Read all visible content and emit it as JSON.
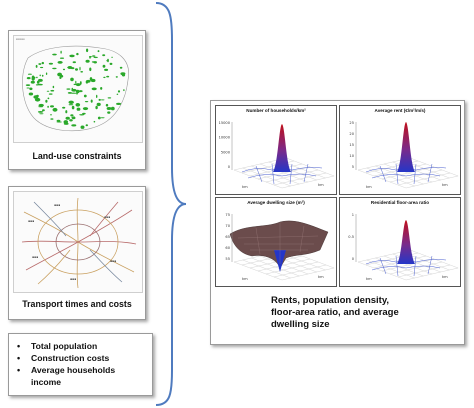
{
  "inputs": {
    "land_use": {
      "caption": "Land-use constraints",
      "icon": "land-use-map"
    },
    "transport": {
      "caption": "Transport times and costs",
      "icon": "transport-network-map"
    },
    "parameters": [
      "Total population",
      "Construction costs",
      "Average households income"
    ]
  },
  "outputs": {
    "subplots": [
      {
        "title": "Number of households/km²",
        "icon": "surface-peak-plot",
        "zticks": [
          "15000",
          "10000",
          "5000",
          "0"
        ]
      },
      {
        "title": "Average rent (€/m²/m/s)",
        "icon": "surface-peak-plot",
        "zticks": [
          "25",
          "20",
          "15",
          "10",
          "5"
        ]
      },
      {
        "title": "Average dwelling size (m²)",
        "icon": "surface-sheet-plot",
        "zticks": [
          "75",
          "70",
          "65",
          "60",
          "55"
        ]
      },
      {
        "title": "Residential floor-area ratio",
        "icon": "surface-peak-plot",
        "zticks": [
          "1",
          "0.5",
          "0"
        ]
      }
    ],
    "axis_label": "km",
    "summary_lines": [
      "Rents, population density,",
      "floor-area ratio, and average",
      "dwelling size"
    ]
  },
  "colors": {
    "brace": "#4f7bbf",
    "green": "#2aa82a",
    "peak_top": "#c0101a",
    "mesh": "#4a5fd0"
  }
}
